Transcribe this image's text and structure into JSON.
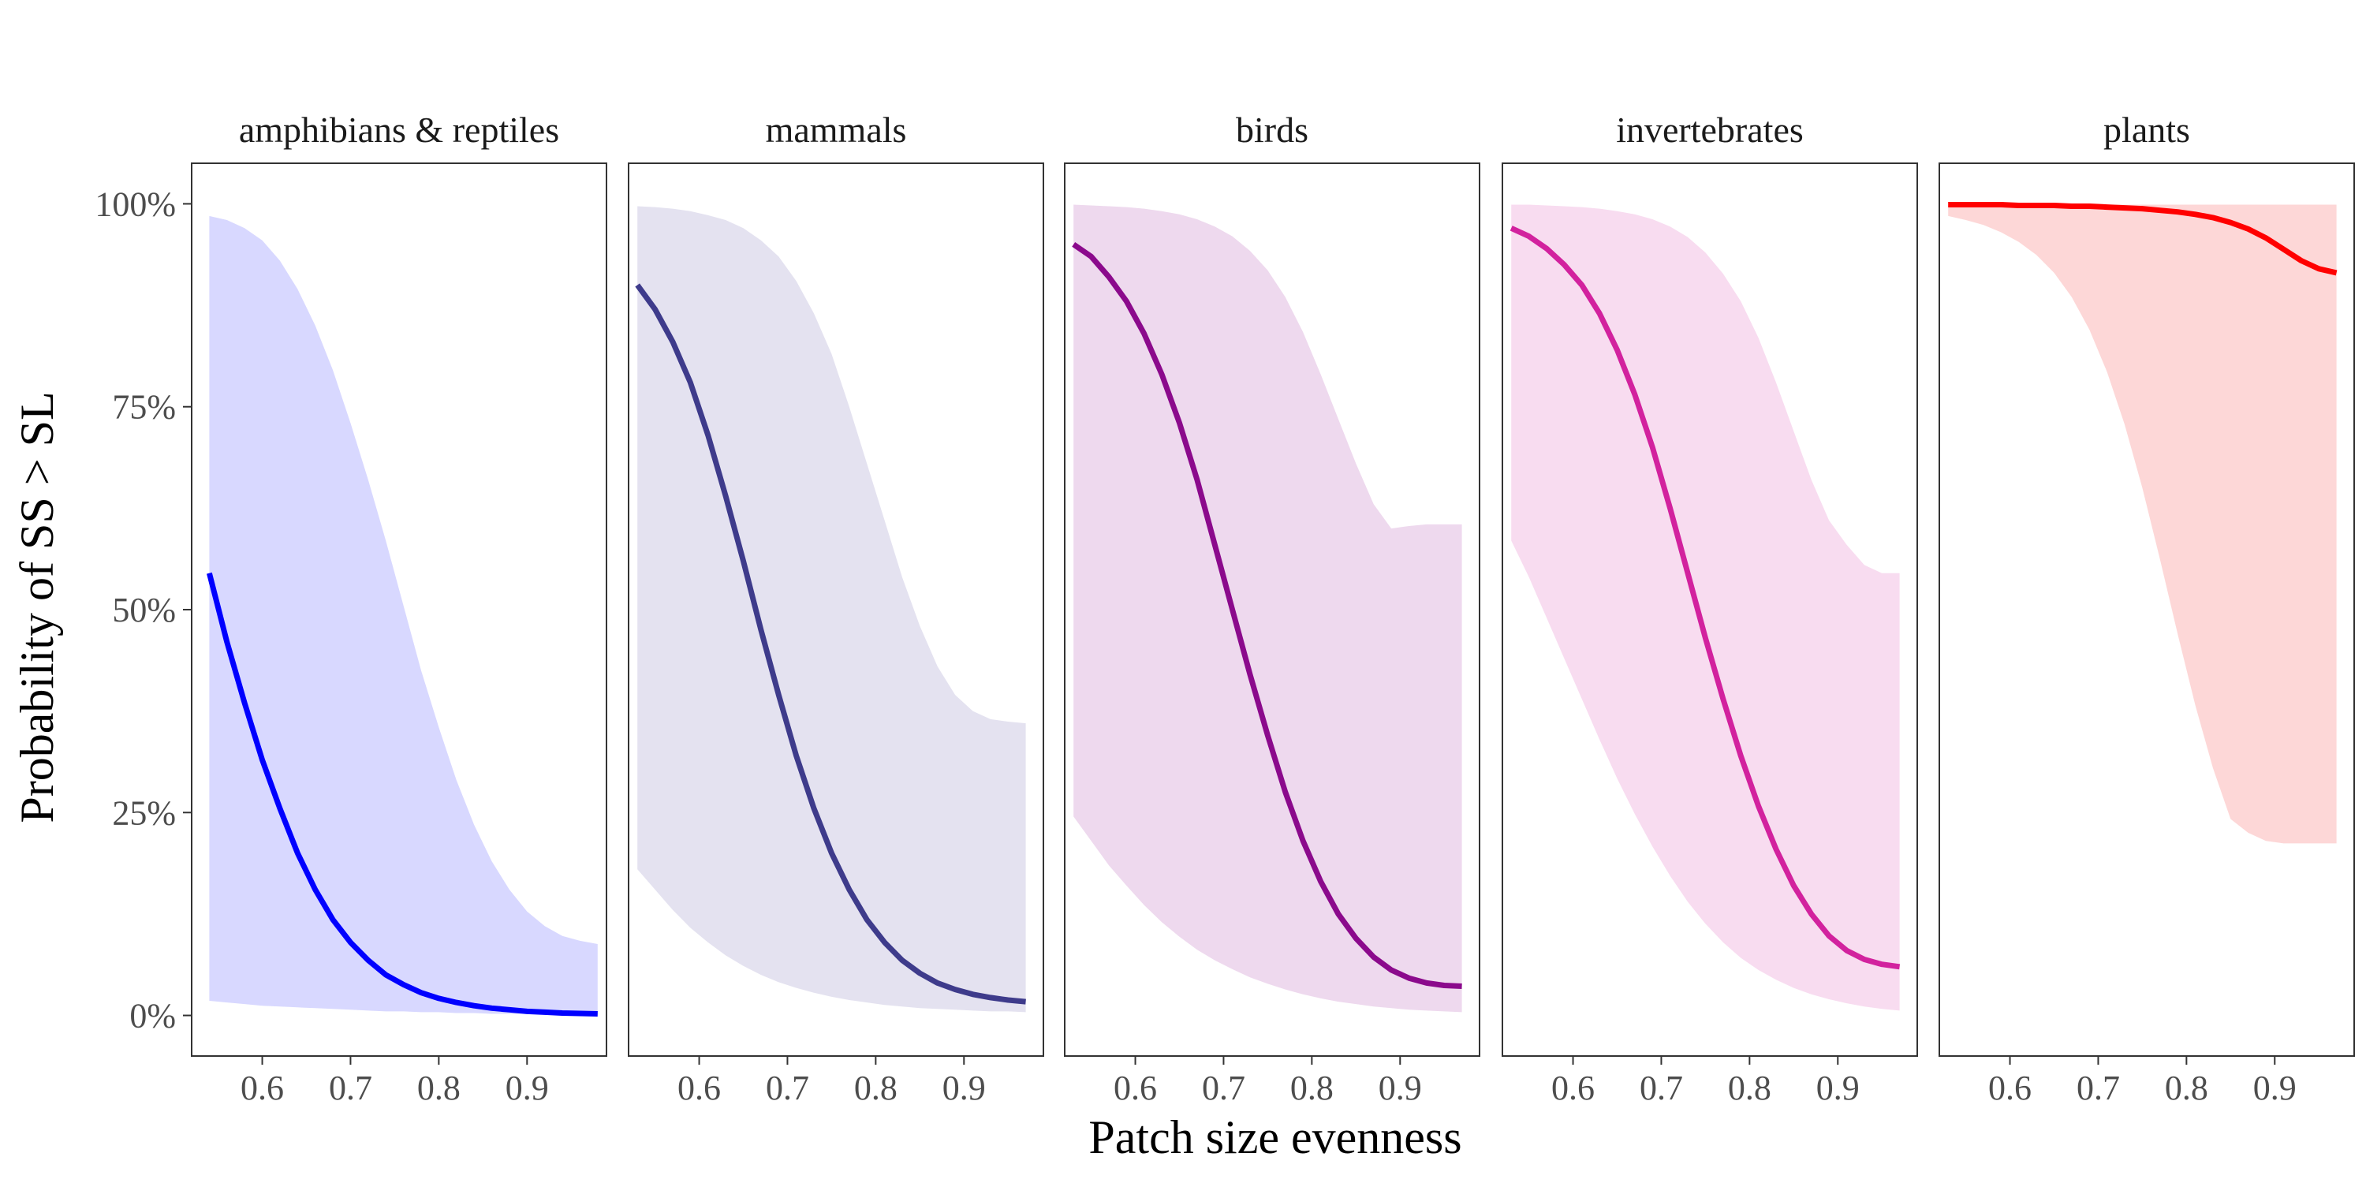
{
  "chart_data": {
    "type": "line",
    "xlabel": "Patch size evenness",
    "ylabel": "Probability of SS > SL",
    "xlim": [
      0.52,
      0.99
    ],
    "ylim": [
      -0.05,
      1.05
    ],
    "x_ticks": [
      0.6,
      0.7,
      0.8,
      0.9
    ],
    "x_tick_labels": [
      "0.6",
      "0.7",
      "0.8",
      "0.9"
    ],
    "y_ticks": [
      0,
      0.25,
      0.5,
      0.75,
      1.0
    ],
    "y_tick_labels": [
      "0%",
      "25%",
      "50%",
      "75%",
      "100%"
    ],
    "grid": false,
    "legend": "none",
    "panels": [
      {
        "name": "amphibians & reptiles",
        "line_color": "#0000ff",
        "band_color": "#d8d8ff",
        "x": [
          0.54,
          0.56,
          0.58,
          0.6,
          0.62,
          0.64,
          0.66,
          0.68,
          0.7,
          0.72,
          0.74,
          0.76,
          0.78,
          0.8,
          0.82,
          0.84,
          0.86,
          0.88,
          0.9,
          0.92,
          0.94,
          0.96,
          0.98
        ],
        "y": [
          0.545,
          0.46,
          0.385,
          0.315,
          0.255,
          0.2,
          0.155,
          0.118,
          0.09,
          0.068,
          0.05,
          0.038,
          0.028,
          0.021,
          0.016,
          0.012,
          0.009,
          0.007,
          0.005,
          0.004,
          0.003,
          0.0025,
          0.002
        ],
        "lower": [
          0.018,
          0.016,
          0.014,
          0.012,
          0.011,
          0.01,
          0.009,
          0.008,
          0.007,
          0.006,
          0.005,
          0.005,
          0.004,
          0.004,
          0.003,
          0.003,
          0.002,
          0.002,
          0.002,
          0.002,
          0.001,
          0.001,
          0.001
        ],
        "upper": [
          0.985,
          0.98,
          0.97,
          0.955,
          0.93,
          0.895,
          0.85,
          0.795,
          0.73,
          0.66,
          0.585,
          0.505,
          0.425,
          0.355,
          0.29,
          0.235,
          0.19,
          0.155,
          0.128,
          0.11,
          0.098,
          0.092,
          0.088
        ]
      },
      {
        "name": "mammals",
        "line_color": "#3e3b8b",
        "band_color": "#e4e2f0",
        "x": [
          0.53,
          0.55,
          0.57,
          0.59,
          0.61,
          0.63,
          0.65,
          0.67,
          0.69,
          0.71,
          0.73,
          0.75,
          0.77,
          0.79,
          0.81,
          0.83,
          0.85,
          0.87,
          0.89,
          0.91,
          0.93,
          0.95,
          0.97
        ],
        "y": [
          0.9,
          0.87,
          0.83,
          0.78,
          0.715,
          0.64,
          0.56,
          0.475,
          0.395,
          0.32,
          0.255,
          0.2,
          0.155,
          0.118,
          0.09,
          0.068,
          0.052,
          0.04,
          0.032,
          0.026,
          0.022,
          0.019,
          0.017
        ],
        "lower": [
          0.18,
          0.155,
          0.13,
          0.108,
          0.09,
          0.074,
          0.061,
          0.05,
          0.041,
          0.034,
          0.028,
          0.023,
          0.019,
          0.016,
          0.013,
          0.011,
          0.009,
          0.008,
          0.007,
          0.006,
          0.005,
          0.005,
          0.004
        ],
        "upper": [
          0.997,
          0.996,
          0.994,
          0.991,
          0.986,
          0.98,
          0.97,
          0.955,
          0.935,
          0.905,
          0.865,
          0.815,
          0.75,
          0.68,
          0.61,
          0.54,
          0.48,
          0.43,
          0.395,
          0.375,
          0.365,
          0.362,
          0.36
        ]
      },
      {
        "name": "birds",
        "line_color": "#8b0a8c",
        "band_color": "#eed9ee",
        "x": [
          0.53,
          0.55,
          0.57,
          0.59,
          0.61,
          0.63,
          0.65,
          0.67,
          0.69,
          0.71,
          0.73,
          0.75,
          0.77,
          0.79,
          0.81,
          0.83,
          0.85,
          0.87,
          0.89,
          0.91,
          0.93,
          0.95,
          0.97
        ],
        "y": [
          0.95,
          0.935,
          0.91,
          0.88,
          0.84,
          0.79,
          0.73,
          0.66,
          0.58,
          0.5,
          0.42,
          0.345,
          0.275,
          0.215,
          0.165,
          0.125,
          0.095,
          0.072,
          0.056,
          0.046,
          0.04,
          0.037,
          0.036
        ],
        "lower": [
          0.245,
          0.215,
          0.185,
          0.16,
          0.136,
          0.115,
          0.097,
          0.081,
          0.068,
          0.057,
          0.047,
          0.039,
          0.032,
          0.026,
          0.021,
          0.017,
          0.014,
          0.011,
          0.009,
          0.007,
          0.006,
          0.005,
          0.004
        ],
        "upper": [
          0.999,
          0.998,
          0.997,
          0.996,
          0.994,
          0.991,
          0.987,
          0.981,
          0.972,
          0.96,
          0.942,
          0.918,
          0.885,
          0.842,
          0.79,
          0.735,
          0.68,
          0.63,
          0.6,
          0.603,
          0.605,
          0.605,
          0.605
        ]
      },
      {
        "name": "invertebrates",
        "line_color": "#d2229e",
        "band_color": "#f8dcf0",
        "x": [
          0.53,
          0.55,
          0.57,
          0.59,
          0.61,
          0.63,
          0.65,
          0.67,
          0.69,
          0.71,
          0.73,
          0.75,
          0.77,
          0.79,
          0.81,
          0.83,
          0.85,
          0.87,
          0.89,
          0.91,
          0.93,
          0.95,
          0.97
        ],
        "y": [
          0.97,
          0.96,
          0.945,
          0.925,
          0.9,
          0.865,
          0.82,
          0.765,
          0.7,
          0.625,
          0.545,
          0.465,
          0.39,
          0.32,
          0.258,
          0.205,
          0.16,
          0.125,
          0.098,
          0.08,
          0.069,
          0.063,
          0.06
        ],
        "lower": [
          0.585,
          0.54,
          0.49,
          0.44,
          0.39,
          0.34,
          0.292,
          0.248,
          0.208,
          0.172,
          0.14,
          0.113,
          0.09,
          0.071,
          0.056,
          0.044,
          0.034,
          0.026,
          0.02,
          0.015,
          0.011,
          0.008,
          0.006
        ],
        "upper": [
          0.999,
          0.999,
          0.998,
          0.997,
          0.996,
          0.994,
          0.991,
          0.987,
          0.981,
          0.972,
          0.959,
          0.94,
          0.914,
          0.88,
          0.835,
          0.78,
          0.72,
          0.66,
          0.61,
          0.58,
          0.555,
          0.545,
          0.545
        ]
      },
      {
        "name": "plants",
        "line_color": "#ff0000",
        "band_color": "#fdd7d7",
        "x": [
          0.53,
          0.55,
          0.57,
          0.59,
          0.61,
          0.63,
          0.65,
          0.67,
          0.69,
          0.71,
          0.73,
          0.75,
          0.77,
          0.79,
          0.81,
          0.83,
          0.85,
          0.87,
          0.89,
          0.91,
          0.93,
          0.95,
          0.97
        ],
        "y": [
          0.999,
          0.999,
          0.999,
          0.999,
          0.998,
          0.998,
          0.998,
          0.997,
          0.997,
          0.996,
          0.995,
          0.994,
          0.992,
          0.99,
          0.987,
          0.983,
          0.977,
          0.969,
          0.958,
          0.944,
          0.93,
          0.92,
          0.915
        ],
        "lower": [
          0.985,
          0.98,
          0.974,
          0.965,
          0.953,
          0.937,
          0.915,
          0.885,
          0.845,
          0.793,
          0.728,
          0.65,
          0.562,
          0.47,
          0.382,
          0.305,
          0.242,
          0.225,
          0.215,
          0.212,
          0.212,
          0.212,
          0.212
        ],
        "upper": [
          0.999,
          0.999,
          0.999,
          0.999,
          0.999,
          0.999,
          0.999,
          0.999,
          0.999,
          0.999,
          0.999,
          0.999,
          0.999,
          0.999,
          0.999,
          0.999,
          0.999,
          0.999,
          0.999,
          0.999,
          0.999,
          0.999,
          0.999
        ]
      }
    ]
  }
}
